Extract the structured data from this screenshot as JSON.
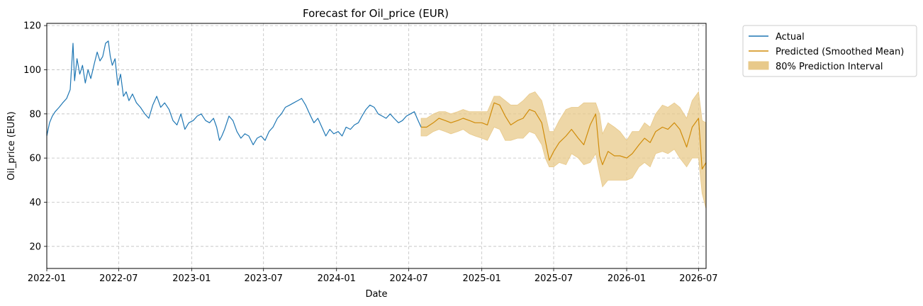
{
  "chart_data": {
    "type": "line",
    "title": "Forecast for Oil_price (EUR)",
    "xlabel": "Date",
    "ylabel": "Oil_price (EUR)",
    "xlim": [
      "2022-01-01",
      "2026-07-20"
    ],
    "ylim": [
      10,
      121
    ],
    "grid": true,
    "legend_position": "outside-top-right",
    "x_ticks": [
      "2022-01",
      "2022-07",
      "2023-01",
      "2023-07",
      "2024-01",
      "2024-07",
      "2025-01",
      "2025-07",
      "2026-01",
      "2026-07"
    ],
    "y_ticks": [
      20,
      40,
      60,
      80,
      100,
      120
    ],
    "colors": {
      "actual": "#1f77b4",
      "predicted": "#d08c0a",
      "interval_fill": "#e8c98a"
    },
    "legend": {
      "actual": "Actual",
      "predicted": "Predicted (Smoothed Mean)",
      "interval": "80% Prediction Interval"
    },
    "series": [
      {
        "name": "Actual",
        "x": [
          "2022-01-01",
          "2022-01-08",
          "2022-01-15",
          "2022-01-22",
          "2022-02-01",
          "2022-02-10",
          "2022-02-20",
          "2022-03-01",
          "2022-03-05",
          "2022-03-08",
          "2022-03-12",
          "2022-03-18",
          "2022-03-25",
          "2022-04-01",
          "2022-04-08",
          "2022-04-15",
          "2022-04-22",
          "2022-05-01",
          "2022-05-08",
          "2022-05-15",
          "2022-05-22",
          "2022-05-29",
          "2022-06-05",
          "2022-06-10",
          "2022-06-15",
          "2022-06-22",
          "2022-06-29",
          "2022-07-06",
          "2022-07-13",
          "2022-07-20",
          "2022-07-27",
          "2022-08-05",
          "2022-08-15",
          "2022-08-25",
          "2022-09-05",
          "2022-09-15",
          "2022-09-25",
          "2022-10-05",
          "2022-10-15",
          "2022-10-25",
          "2022-11-05",
          "2022-11-15",
          "2022-11-25",
          "2022-12-05",
          "2022-12-15",
          "2022-12-25",
          "2023-01-05",
          "2023-01-15",
          "2023-01-25",
          "2023-02-05",
          "2023-02-15",
          "2023-02-25",
          "2023-03-05",
          "2023-03-12",
          "2023-03-18",
          "2023-03-25",
          "2023-04-05",
          "2023-04-15",
          "2023-04-25",
          "2023-05-05",
          "2023-05-15",
          "2023-05-25",
          "2023-06-05",
          "2023-06-15",
          "2023-06-25",
          "2023-07-05",
          "2023-07-15",
          "2023-07-25",
          "2023-08-05",
          "2023-08-15",
          "2023-08-25",
          "2023-09-05",
          "2023-09-15",
          "2023-09-25",
          "2023-10-05",
          "2023-10-15",
          "2023-10-25",
          "2023-11-05",
          "2023-11-15",
          "2023-11-25",
          "2023-12-05",
          "2023-12-15",
          "2023-12-25",
          "2024-01-05",
          "2024-01-15",
          "2024-01-25",
          "2024-02-05",
          "2024-02-15",
          "2024-02-25",
          "2024-03-05",
          "2024-03-15",
          "2024-03-25",
          "2024-04-05",
          "2024-04-15",
          "2024-04-25",
          "2024-05-05",
          "2024-05-15",
          "2024-05-25",
          "2024-06-05",
          "2024-06-15",
          "2024-06-25",
          "2024-07-05",
          "2024-07-15",
          "2024-07-22",
          "2024-08-01"
        ],
        "values": [
          70,
          76,
          79,
          81,
          83,
          85,
          87,
          91,
          103,
          112,
          95,
          105,
          98,
          102,
          94,
          100,
          96,
          103,
          108,
          104,
          106,
          112,
          113,
          106,
          102,
          105,
          93,
          98,
          88,
          90,
          86,
          89,
          85,
          83,
          80,
          78,
          84,
          88,
          83,
          85,
          82,
          77,
          75,
          80,
          73,
          76,
          77,
          79,
          80,
          77,
          76,
          78,
          74,
          68,
          70,
          73,
          79,
          77,
          72,
          69,
          71,
          70,
          66,
          69,
          70,
          68,
          72,
          74,
          78,
          80,
          83,
          84,
          85,
          86,
          87,
          84,
          80,
          76,
          78,
          74,
          70,
          73,
          71,
          72,
          70,
          74,
          73,
          75,
          76,
          79,
          82,
          84,
          83,
          80,
          79,
          78,
          80,
          78,
          76,
          77,
          79,
          80,
          81,
          78,
          74
        ]
      },
      {
        "name": "Predicted (Smoothed Mean)",
        "x": [
          "2024-08-01",
          "2024-08-15",
          "2024-09-01",
          "2024-09-15",
          "2024-10-01",
          "2024-10-15",
          "2024-11-01",
          "2024-11-15",
          "2024-12-01",
          "2024-12-15",
          "2025-01-01",
          "2025-01-15",
          "2025-02-01",
          "2025-02-15",
          "2025-03-01",
          "2025-03-15",
          "2025-04-01",
          "2025-04-15",
          "2025-05-01",
          "2025-05-15",
          "2025-06-01",
          "2025-06-10",
          "2025-06-20",
          "2025-07-01",
          "2025-07-15",
          "2025-08-01",
          "2025-08-15",
          "2025-09-01",
          "2025-09-15",
          "2025-10-01",
          "2025-10-15",
          "2025-10-25",
          "2025-11-01",
          "2025-11-15",
          "2025-12-01",
          "2025-12-15",
          "2026-01-01",
          "2026-01-15",
          "2026-02-01",
          "2026-02-15",
          "2026-03-01",
          "2026-03-15",
          "2026-04-01",
          "2026-04-15",
          "2026-05-01",
          "2026-05-15",
          "2026-06-01",
          "2026-06-15",
          "2026-07-01",
          "2026-07-10",
          "2026-07-20"
        ],
        "values": [
          74,
          74,
          76,
          78,
          77,
          76,
          77,
          78,
          77,
          76,
          76,
          75,
          85,
          84,
          79,
          75,
          77,
          78,
          82,
          81,
          76,
          68,
          59,
          63,
          67,
          70,
          73,
          69,
          66,
          75,
          80,
          61,
          57,
          63,
          61,
          61,
          60,
          62,
          66,
          69,
          67,
          72,
          74,
          73,
          76,
          73,
          65,
          74,
          78,
          55,
          58
        ]
      },
      {
        "name": "80% Prediction Interval",
        "x": [
          "2024-08-01",
          "2024-08-15",
          "2024-09-01",
          "2024-09-15",
          "2024-10-01",
          "2024-10-15",
          "2024-11-01",
          "2024-11-15",
          "2024-12-01",
          "2024-12-15",
          "2025-01-01",
          "2025-01-15",
          "2025-02-01",
          "2025-02-15",
          "2025-03-01",
          "2025-03-15",
          "2025-04-01",
          "2025-04-15",
          "2025-05-01",
          "2025-05-15",
          "2025-06-01",
          "2025-06-10",
          "2025-06-20",
          "2025-07-01",
          "2025-07-15",
          "2025-08-01",
          "2025-08-15",
          "2025-09-01",
          "2025-09-15",
          "2025-10-01",
          "2025-10-15",
          "2025-10-25",
          "2025-11-01",
          "2025-11-15",
          "2025-12-01",
          "2025-12-15",
          "2026-01-01",
          "2026-01-15",
          "2026-02-01",
          "2026-02-15",
          "2026-03-01",
          "2026-03-15",
          "2026-04-01",
          "2026-04-15",
          "2026-05-01",
          "2026-05-15",
          "2026-06-01",
          "2026-06-15",
          "2026-07-01",
          "2026-07-10",
          "2026-07-20"
        ],
        "lower": [
          70,
          70,
          72,
          73,
          72,
          71,
          72,
          73,
          71,
          70,
          69,
          68,
          74,
          73,
          68,
          68,
          69,
          69,
          72,
          71,
          66,
          60,
          56,
          56,
          58,
          57,
          62,
          60,
          57,
          58,
          62,
          53,
          47,
          50,
          50,
          50,
          50,
          51,
          56,
          58,
          56,
          62,
          63,
          62,
          64,
          60,
          56,
          60,
          60,
          44,
          37
        ],
        "upper": [
          78,
          78,
          80,
          81,
          81,
          80,
          81,
          82,
          81,
          81,
          81,
          81,
          88,
          88,
          86,
          84,
          84,
          86,
          89,
          90,
          86,
          80,
          72,
          72,
          77,
          82,
          83,
          83,
          85,
          85,
          85,
          80,
          71,
          76,
          74,
          72,
          68,
          72,
          72,
          76,
          74,
          80,
          84,
          83,
          85,
          83,
          78,
          86,
          90,
          77,
          76
        ]
      }
    ]
  }
}
